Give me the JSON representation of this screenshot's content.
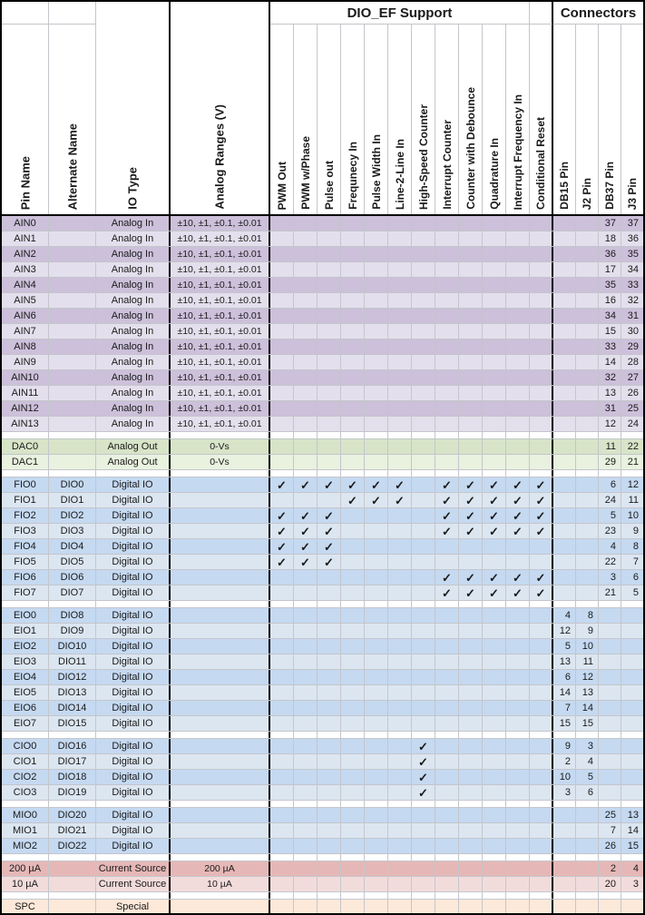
{
  "header": {
    "title_dioef": "DIO_EF Support",
    "title_connectors": "Connectors",
    "left_columns": [
      "Pin Name",
      "Alternate Name",
      "IO Type",
      "Analog Ranges (V)"
    ],
    "dioef_columns": [
      "PWM Out",
      "PWM w/Phase",
      "Pulse out",
      "Frequnecy In",
      "Pulse Width In",
      "Line-2-Line In",
      "High-Speed Counter",
      "Interrupt Counter",
      "Counter with Debounce",
      "Quadrature In",
      "Interrupt Frequency In",
      "Conditional Reset"
    ],
    "connector_columns": [
      "DB15 Pin",
      "J2 Pin",
      "DB37 Pin",
      "J3 Pin"
    ]
  },
  "check_glyph": "✓",
  "colors": {
    "gridline": "#c4c6cc",
    "border": "#000000",
    "ain_dark": "#ccc0da",
    "ain_light": "#e4dfec",
    "dac_dark": "#d7e4c8",
    "dac_light": "#e9f1df",
    "dio_dark": "#c5d9f1",
    "dio_light": "#dce6f1",
    "current_dark": "#e5b8b7",
    "current_light": "#f2dcdb",
    "spc": "#fde9d9"
  },
  "sections": [
    {
      "id": "ain",
      "row_colors": [
        "#ccc0da",
        "#e4dfec"
      ],
      "spacer_after": true,
      "rows": [
        {
          "pin": "AIN0",
          "alt": "",
          "io": "Analog In",
          "range": "±10, ±1, ±0.1, ±0.01",
          "checks": "",
          "pins": [
            "",
            "",
            "37",
            "37"
          ]
        },
        {
          "pin": "AIN1",
          "alt": "",
          "io": "Analog In",
          "range": "±10, ±1, ±0.1, ±0.01",
          "checks": "",
          "pins": [
            "",
            "",
            "18",
            "36"
          ]
        },
        {
          "pin": "AIN2",
          "alt": "",
          "io": "Analog In",
          "range": "±10, ±1, ±0.1, ±0.01",
          "checks": "",
          "pins": [
            "",
            "",
            "36",
            "35"
          ]
        },
        {
          "pin": "AIN3",
          "alt": "",
          "io": "Analog In",
          "range": "±10, ±1, ±0.1, ±0.01",
          "checks": "",
          "pins": [
            "",
            "",
            "17",
            "34"
          ]
        },
        {
          "pin": "AIN4",
          "alt": "",
          "io": "Analog In",
          "range": "±10, ±1, ±0.1, ±0.01",
          "checks": "",
          "pins": [
            "",
            "",
            "35",
            "33"
          ]
        },
        {
          "pin": "AIN5",
          "alt": "",
          "io": "Analog In",
          "range": "±10, ±1, ±0.1, ±0.01",
          "checks": "",
          "pins": [
            "",
            "",
            "16",
            "32"
          ]
        },
        {
          "pin": "AIN6",
          "alt": "",
          "io": "Analog In",
          "range": "±10, ±1, ±0.1, ±0.01",
          "checks": "",
          "pins": [
            "",
            "",
            "34",
            "31"
          ]
        },
        {
          "pin": "AIN7",
          "alt": "",
          "io": "Analog In",
          "range": "±10, ±1, ±0.1, ±0.01",
          "checks": "",
          "pins": [
            "",
            "",
            "15",
            "30"
          ]
        },
        {
          "pin": "AIN8",
          "alt": "",
          "io": "Analog In",
          "range": "±10, ±1, ±0.1, ±0.01",
          "checks": "",
          "pins": [
            "",
            "",
            "33",
            "29"
          ]
        },
        {
          "pin": "AIN9",
          "alt": "",
          "io": "Analog In",
          "range": "±10, ±1, ±0.1, ±0.01",
          "checks": "",
          "pins": [
            "",
            "",
            "14",
            "28"
          ]
        },
        {
          "pin": "AIN10",
          "alt": "",
          "io": "Analog In",
          "range": "±10, ±1, ±0.1, ±0.01",
          "checks": "",
          "pins": [
            "",
            "",
            "32",
            "27"
          ]
        },
        {
          "pin": "AIN11",
          "alt": "",
          "io": "Analog In",
          "range": "±10, ±1, ±0.1, ±0.01",
          "checks": "",
          "pins": [
            "",
            "",
            "13",
            "26"
          ]
        },
        {
          "pin": "AIN12",
          "alt": "",
          "io": "Analog In",
          "range": "±10, ±1, ±0.1, ±0.01",
          "checks": "",
          "pins": [
            "",
            "",
            "31",
            "25"
          ]
        },
        {
          "pin": "AIN13",
          "alt": "",
          "io": "Analog In",
          "range": "±10, ±1, ±0.1, ±0.01",
          "checks": "",
          "pins": [
            "",
            "",
            "12",
            "24"
          ]
        }
      ]
    },
    {
      "id": "dac",
      "row_colors": [
        "#d7e4c8",
        "#e9f1df"
      ],
      "spacer_after": true,
      "rows": [
        {
          "pin": "DAC0",
          "alt": "",
          "io": "Analog Out",
          "range": "0-Vs",
          "checks": "",
          "pins": [
            "",
            "",
            "11",
            "22"
          ]
        },
        {
          "pin": "DAC1",
          "alt": "",
          "io": "Analog Out",
          "range": "0-Vs",
          "checks": "",
          "pins": [
            "",
            "",
            "29",
            "21"
          ]
        }
      ]
    },
    {
      "id": "fio",
      "row_colors": [
        "#c5d9f1",
        "#dce6f1"
      ],
      "spacer_after": true,
      "rows": [
        {
          "pin": "FIO0",
          "alt": "DIO0",
          "io": "Digital IO",
          "range": "",
          "checks": "111111011111",
          "pins": [
            "",
            "",
            "6",
            "12"
          ]
        },
        {
          "pin": "FIO1",
          "alt": "DIO1",
          "io": "Digital IO",
          "range": "",
          "checks": "000111011111",
          "pins": [
            "",
            "",
            "24",
            "11"
          ]
        },
        {
          "pin": "FIO2",
          "alt": "DIO2",
          "io": "Digital IO",
          "range": "",
          "checks": "111000011111",
          "pins": [
            "",
            "",
            "5",
            "10"
          ]
        },
        {
          "pin": "FIO3",
          "alt": "DIO3",
          "io": "Digital IO",
          "range": "",
          "checks": "111000011111",
          "pins": [
            "",
            "",
            "23",
            "9"
          ]
        },
        {
          "pin": "FIO4",
          "alt": "DIO4",
          "io": "Digital IO",
          "range": "",
          "checks": "111000000000",
          "pins": [
            "",
            "",
            "4",
            "8"
          ]
        },
        {
          "pin": "FIO5",
          "alt": "DIO5",
          "io": "Digital IO",
          "range": "",
          "checks": "111000000000",
          "pins": [
            "",
            "",
            "22",
            "7"
          ]
        },
        {
          "pin": "FIO6",
          "alt": "DIO6",
          "io": "Digital IO",
          "range": "",
          "checks": "000000011111",
          "pins": [
            "",
            "",
            "3",
            "6"
          ]
        },
        {
          "pin": "FIO7",
          "alt": "DIO7",
          "io": "Digital IO",
          "range": "",
          "checks": "000000011111",
          "pins": [
            "",
            "",
            "21",
            "5"
          ]
        }
      ]
    },
    {
      "id": "eio",
      "row_colors": [
        "#c5d9f1",
        "#dce6f1"
      ],
      "spacer_after": true,
      "rows": [
        {
          "pin": "EIO0",
          "alt": "DIO8",
          "io": "Digital IO",
          "range": "",
          "checks": "",
          "pins": [
            "4",
            "8",
            "",
            ""
          ]
        },
        {
          "pin": "EIO1",
          "alt": "DIO9",
          "io": "Digital IO",
          "range": "",
          "checks": "",
          "pins": [
            "12",
            "9",
            "",
            ""
          ]
        },
        {
          "pin": "EIO2",
          "alt": "DIO10",
          "io": "Digital IO",
          "range": "",
          "checks": "",
          "pins": [
            "5",
            "10",
            "",
            ""
          ]
        },
        {
          "pin": "EIO3",
          "alt": "DIO11",
          "io": "Digital IO",
          "range": "",
          "checks": "",
          "pins": [
            "13",
            "11",
            "",
            ""
          ]
        },
        {
          "pin": "EIO4",
          "alt": "DIO12",
          "io": "Digital IO",
          "range": "",
          "checks": "",
          "pins": [
            "6",
            "12",
            "",
            ""
          ]
        },
        {
          "pin": "EIO5",
          "alt": "DIO13",
          "io": "Digital IO",
          "range": "",
          "checks": "",
          "pins": [
            "14",
            "13",
            "",
            ""
          ]
        },
        {
          "pin": "EIO6",
          "alt": "DIO14",
          "io": "Digital IO",
          "range": "",
          "checks": "",
          "pins": [
            "7",
            "14",
            "",
            ""
          ]
        },
        {
          "pin": "EIO7",
          "alt": "DIO15",
          "io": "Digital IO",
          "range": "",
          "checks": "",
          "pins": [
            "15",
            "15",
            "",
            ""
          ]
        }
      ]
    },
    {
      "id": "cio",
      "row_colors": [
        "#c5d9f1",
        "#dce6f1"
      ],
      "spacer_after": true,
      "rows": [
        {
          "pin": "CIO0",
          "alt": "DIO16",
          "io": "Digital IO",
          "range": "",
          "checks": "000000100000",
          "pins": [
            "9",
            "3",
            "",
            ""
          ]
        },
        {
          "pin": "CIO1",
          "alt": "DIO17",
          "io": "Digital IO",
          "range": "",
          "checks": "000000100000",
          "pins": [
            "2",
            "4",
            "",
            ""
          ]
        },
        {
          "pin": "CIO2",
          "alt": "DIO18",
          "io": "Digital IO",
          "range": "",
          "checks": "000000100000",
          "pins": [
            "10",
            "5",
            "",
            ""
          ]
        },
        {
          "pin": "CIO3",
          "alt": "DIO19",
          "io": "Digital IO",
          "range": "",
          "checks": "000000100000",
          "pins": [
            "3",
            "6",
            "",
            ""
          ]
        }
      ]
    },
    {
      "id": "mio",
      "row_colors": [
        "#c5d9f1",
        "#dce6f1"
      ],
      "spacer_after": true,
      "rows": [
        {
          "pin": "MIO0",
          "alt": "DIO20",
          "io": "Digital IO",
          "range": "",
          "checks": "",
          "pins": [
            "",
            "",
            "25",
            "13"
          ]
        },
        {
          "pin": "MIO1",
          "alt": "DIO21",
          "io": "Digital IO",
          "range": "",
          "checks": "",
          "pins": [
            "",
            "",
            "7",
            "14"
          ]
        },
        {
          "pin": "MIO2",
          "alt": "DIO22",
          "io": "Digital IO",
          "range": "",
          "checks": "",
          "pins": [
            "",
            "",
            "26",
            "15"
          ]
        }
      ]
    },
    {
      "id": "current-source",
      "row_colors": [
        "#e5b8b7",
        "#f2dcdb"
      ],
      "spacer_after": true,
      "rows": [
        {
          "pin": "200 µA",
          "alt": "",
          "io": "Current Source",
          "range": "200 µA",
          "checks": "",
          "pins": [
            "",
            "",
            "2",
            "4"
          ]
        },
        {
          "pin": "10 µA",
          "alt": "",
          "io": "Current Source",
          "range": "10 µA",
          "checks": "",
          "pins": [
            "",
            "",
            "20",
            "3"
          ]
        }
      ]
    },
    {
      "id": "spc",
      "row_colors": [
        "#fde9d9",
        "#fde9d9"
      ],
      "spacer_after": false,
      "rows": [
        {
          "pin": "SPC",
          "alt": "",
          "io": "Special",
          "range": "",
          "checks": "",
          "pins": [
            "",
            "",
            "",
            ""
          ]
        }
      ]
    }
  ]
}
